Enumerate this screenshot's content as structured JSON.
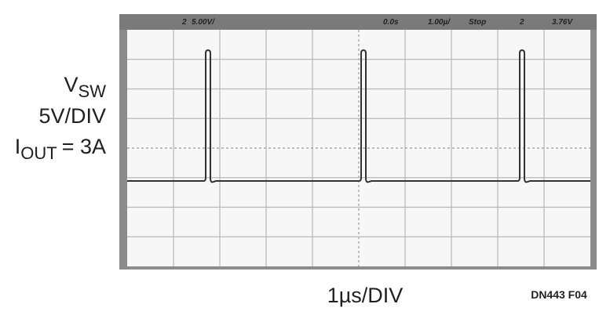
{
  "scope": {
    "header": {
      "channel": "2",
      "scale": "5.00V/",
      "time_offset": "0.0s",
      "time_scale": "1.00µ/",
      "status": "Stop",
      "trigger_channel": "2",
      "trigger_level": "3.76V"
    }
  },
  "labels": {
    "signal": "V",
    "signal_sub": "SW",
    "signal_scale": "5V/DIV",
    "current": "I",
    "current_sub": "OUT",
    "current_value": "= 3A"
  },
  "time_axis": "1µs/DIV",
  "figure_id": "DN443 F04"
}
